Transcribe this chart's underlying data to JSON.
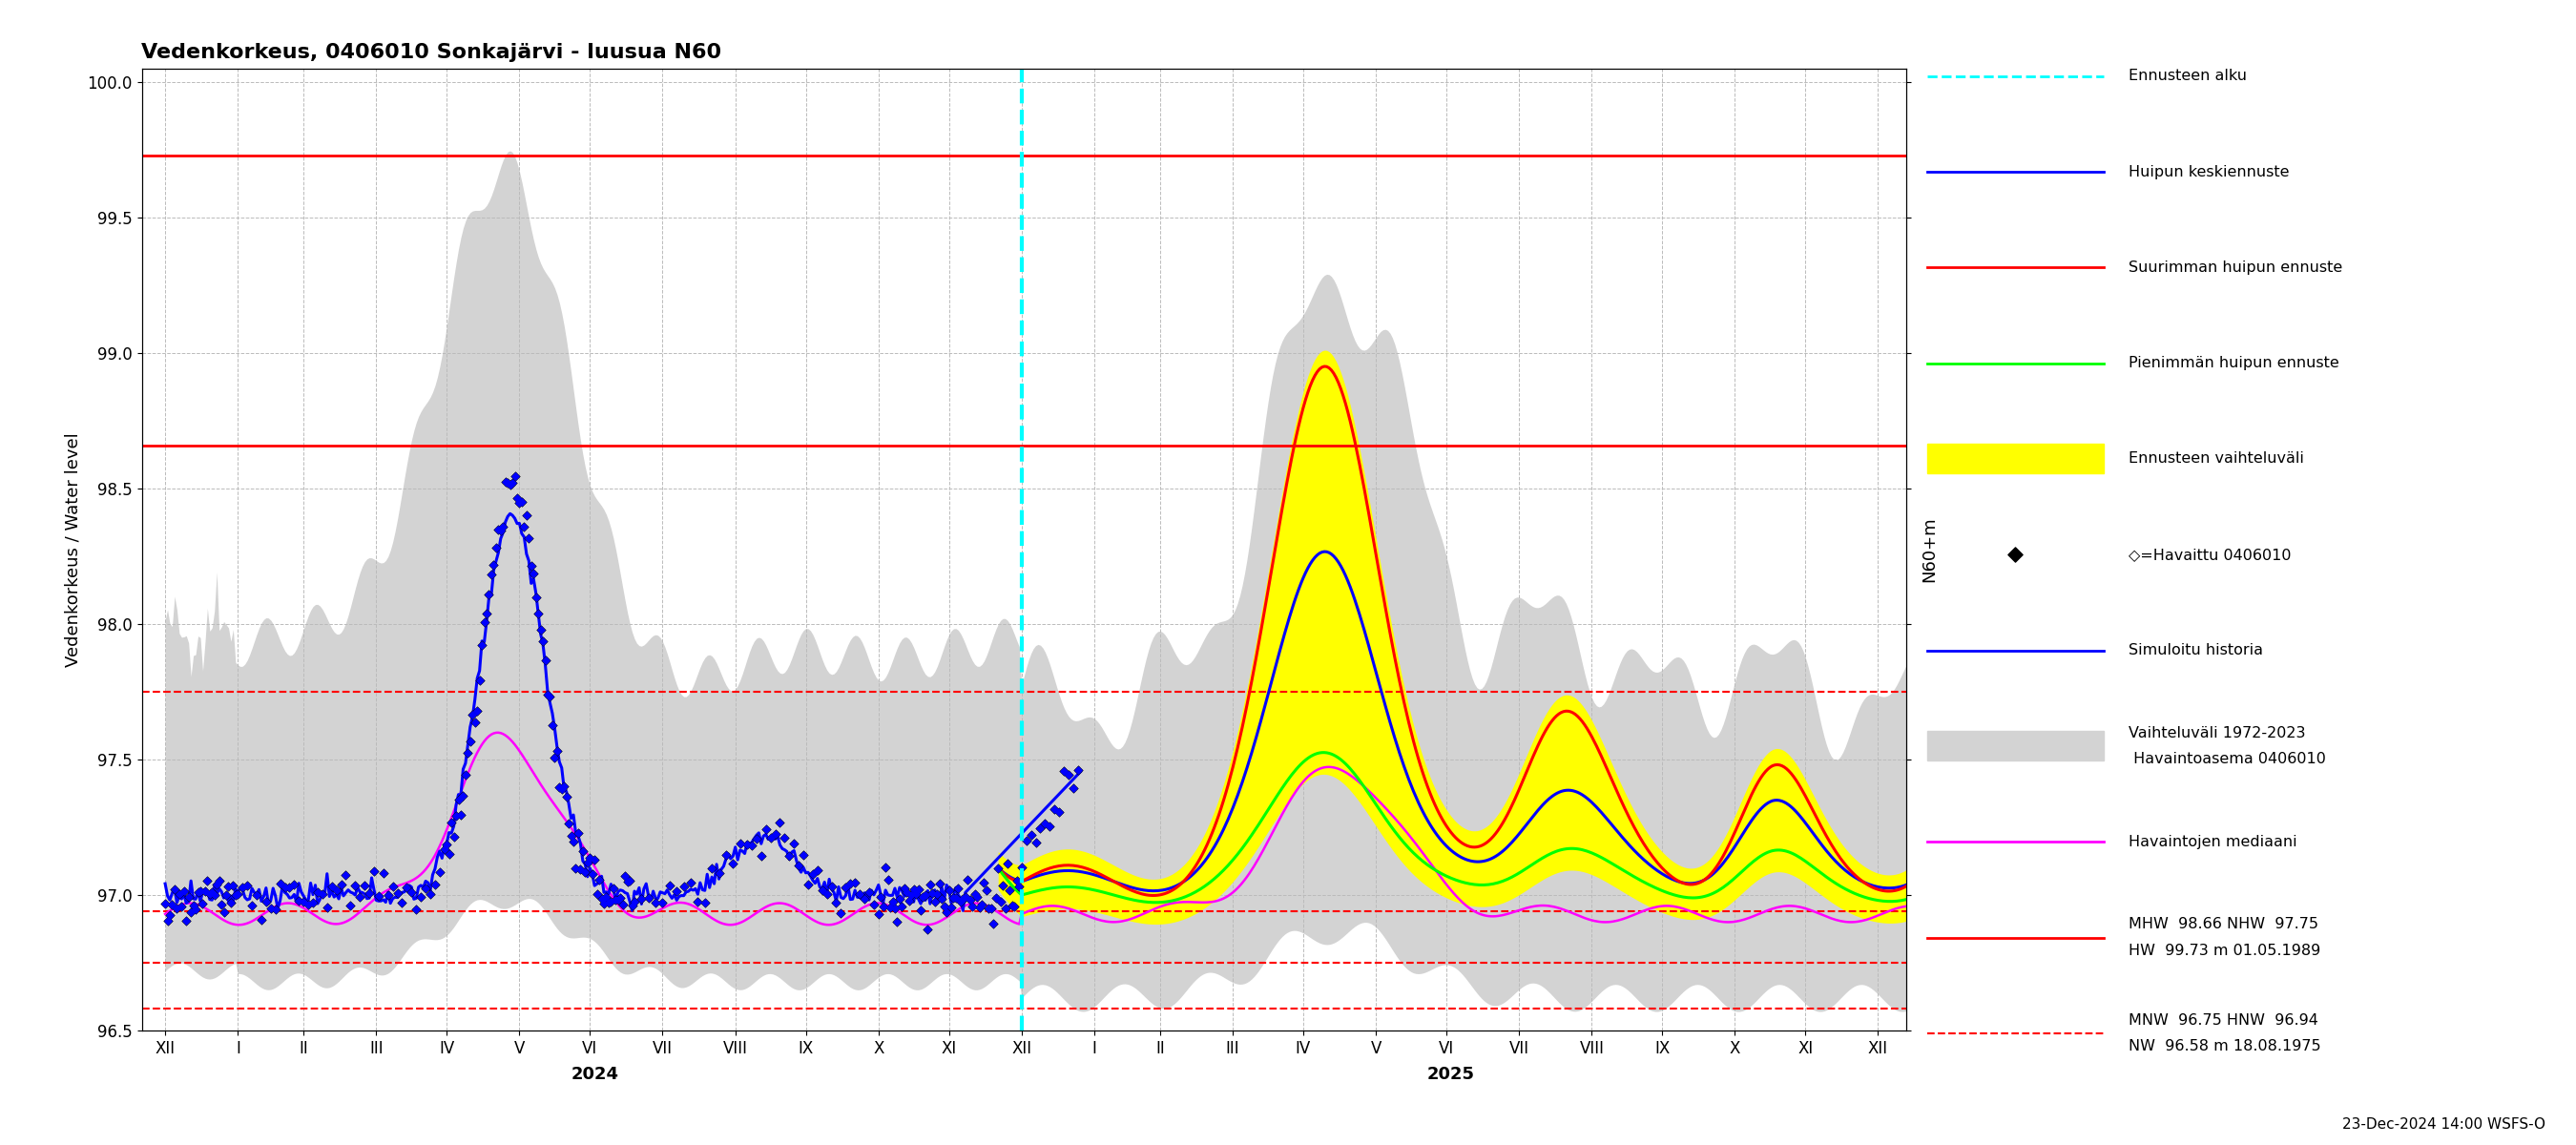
{
  "title": "Vedenkorkeus, 0406010 Sonkajärvi - luusua N60",
  "ylabel1": "Vedenkorkeus / Water level",
  "ylabel2": "N60+m",
  "ylim": [
    96.5,
    100.05
  ],
  "yticks": [
    96.5,
    97.0,
    97.5,
    98.0,
    98.5,
    99.0,
    99.5,
    100.0
  ],
  "hlines_solid_red": [
    99.73,
    98.66
  ],
  "hlines_dashed_red": [
    97.75,
    96.94,
    96.75,
    96.58
  ],
  "timestamp": "23-Dec-2024 14:00 WSFS-O",
  "background_color": "white",
  "grid_color": "#aaaaaa",
  "month_ticks": [
    0,
    31,
    59,
    90,
    120,
    151,
    181,
    212,
    243,
    273,
    304,
    334,
    365,
    396,
    424,
    455,
    485,
    516,
    546,
    577,
    608,
    638,
    669,
    699,
    730
  ],
  "month_labels": [
    "XII",
    "I",
    "II",
    "III",
    "IV",
    "V",
    "VI",
    "VII",
    "VIII",
    "IX",
    "X",
    "XI",
    "XII",
    "I",
    "II",
    "III",
    "IV",
    "V",
    "VI",
    "VII",
    "VIII",
    "IX",
    "X",
    "XI",
    "XII"
  ],
  "xlim": [
    -10,
    742
  ],
  "year_labels": [
    {
      "text": "2024",
      "x": 183
    },
    {
      "text": "2025",
      "x": 548
    }
  ],
  "forecast_x": 365
}
